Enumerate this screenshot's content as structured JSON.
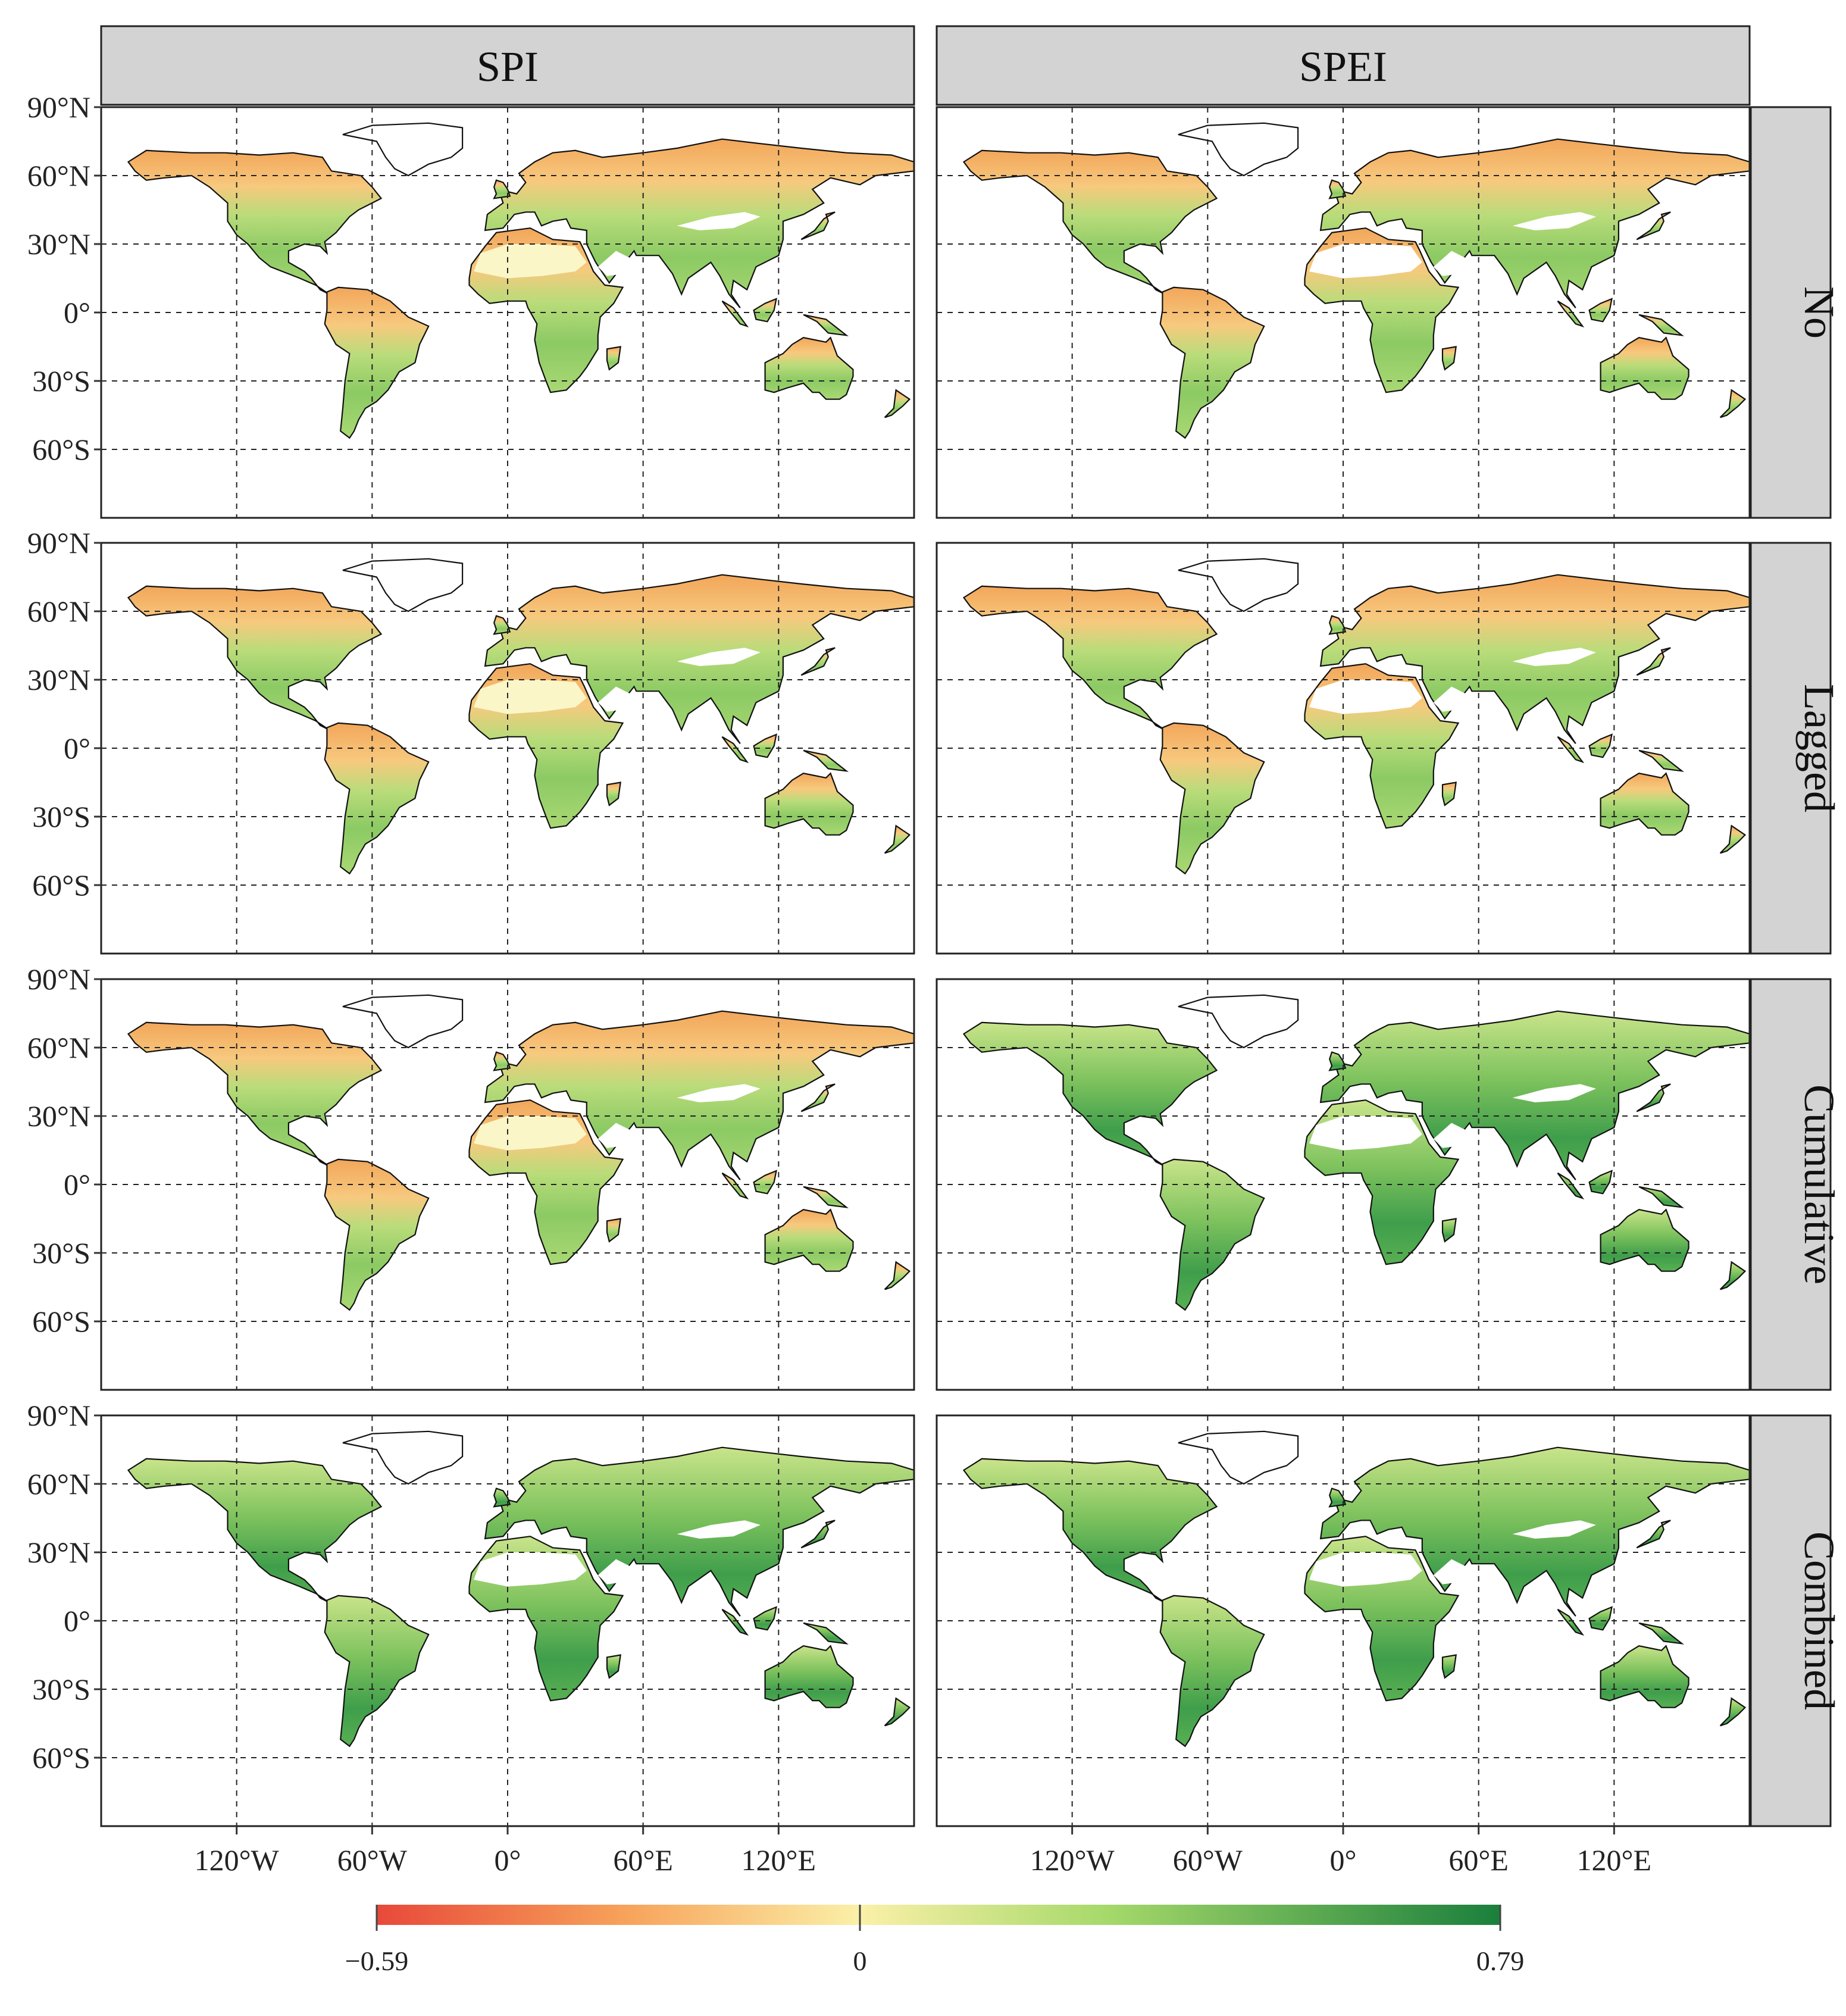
{
  "figure": {
    "columns": [
      {
        "id": "spi",
        "label": "SPI"
      },
      {
        "id": "spei",
        "label": "SPEI"
      }
    ],
    "rows": [
      {
        "id": "no",
        "label": "No"
      },
      {
        "id": "lagged",
        "label": "Lagged"
      },
      {
        "id": "cumulative",
        "label": "Cumulative"
      },
      {
        "id": "combined",
        "label": "Combined"
      }
    ],
    "lat_ticks": [
      {
        "value": 90,
        "label": "90°N"
      },
      {
        "value": 60,
        "label": "60°N"
      },
      {
        "value": 30,
        "label": "30°N"
      },
      {
        "value": 0,
        "label": "0°"
      },
      {
        "value": -30,
        "label": "30°S"
      },
      {
        "value": -60,
        "label": "60°S"
      }
    ],
    "lon_ticks": [
      {
        "value": -120,
        "label": "120°W"
      },
      {
        "value": -60,
        "label": "60°W"
      },
      {
        "value": 0,
        "label": "0°"
      },
      {
        "value": 60,
        "label": "60°E"
      },
      {
        "value": 120,
        "label": "120°E"
      }
    ],
    "lon_range": [
      -180,
      180
    ],
    "lat_range": [
      -90,
      90
    ],
    "gridlines": "dashed"
  },
  "colorbar": {
    "min_label": "−0.59",
    "mid_label": "0",
    "max_label": "0.79",
    "min": -0.59,
    "mid": 0,
    "max": 0.79,
    "colors": [
      "#e8493a",
      "#f7a25a",
      "#fbf0a8",
      "#a6d96a",
      "#1a7f3c"
    ],
    "placement": "bottom"
  },
  "colors": {
    "strip_bg": "#d3d3d3",
    "panel_border": "#222222"
  }
}
